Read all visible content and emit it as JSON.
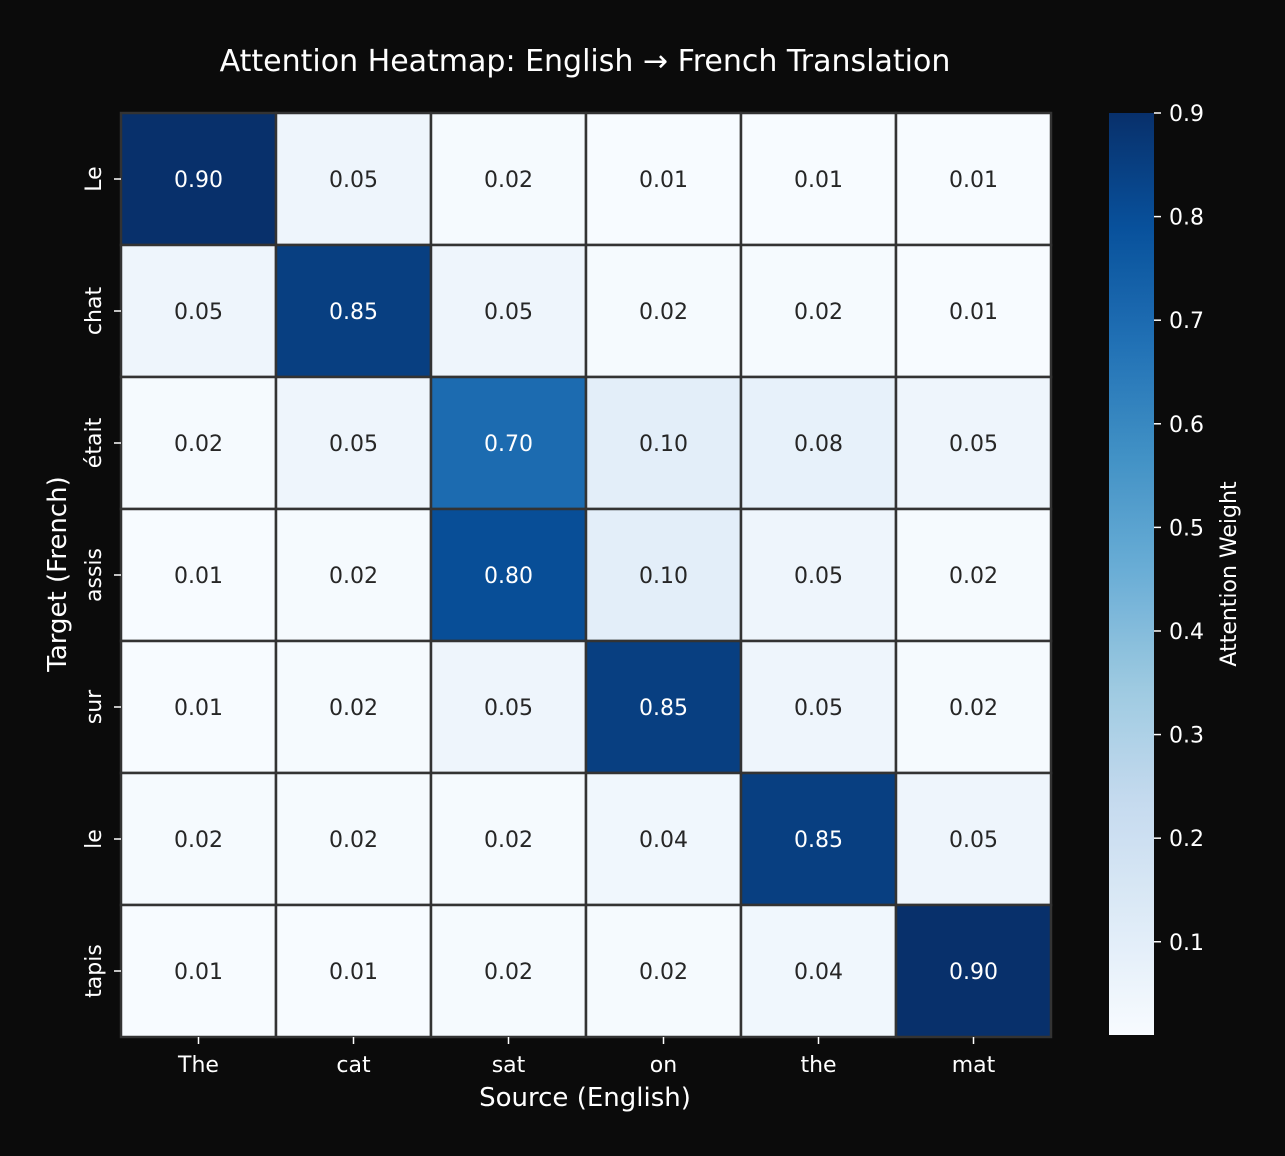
{
  "chart_data": {
    "type": "heatmap",
    "title": "Attention Heatmap: English → French Translation",
    "xlabel": "Source (English)",
    "ylabel": "Target (French)",
    "x_categories": [
      "The",
      "cat",
      "sat",
      "on",
      "the",
      "mat"
    ],
    "y_categories": [
      "Le",
      "chat",
      "était",
      "assis",
      "sur",
      "le",
      "tapis"
    ],
    "values": [
      [
        0.9,
        0.05,
        0.02,
        0.01,
        0.01,
        0.01
      ],
      [
        0.05,
        0.85,
        0.05,
        0.02,
        0.02,
        0.01
      ],
      [
        0.02,
        0.05,
        0.7,
        0.1,
        0.08,
        0.05
      ],
      [
        0.01,
        0.02,
        0.8,
        0.1,
        0.05,
        0.02
      ],
      [
        0.01,
        0.02,
        0.05,
        0.85,
        0.05,
        0.02
      ],
      [
        0.02,
        0.02,
        0.02,
        0.04,
        0.85,
        0.05
      ],
      [
        0.01,
        0.01,
        0.02,
        0.02,
        0.04,
        0.9
      ]
    ],
    "annotation_format": "0.00",
    "colormap": "Blues",
    "vmin": 0.01,
    "vmax": 0.9,
    "colorbar": {
      "label": "Attention Weight",
      "ticks": [
        0.1,
        0.2,
        0.3,
        0.4,
        0.5,
        0.6,
        0.7,
        0.8,
        0.9
      ],
      "tick_labels": [
        "0.1",
        "0.2",
        "0.3",
        "0.4",
        "0.5",
        "0.6",
        "0.7",
        "0.8",
        "0.9"
      ]
    },
    "colors": {
      "background": "#0b0b0b",
      "cell_border": "#333333",
      "text_light": "#ffffff",
      "text_dark": "#262626"
    }
  }
}
